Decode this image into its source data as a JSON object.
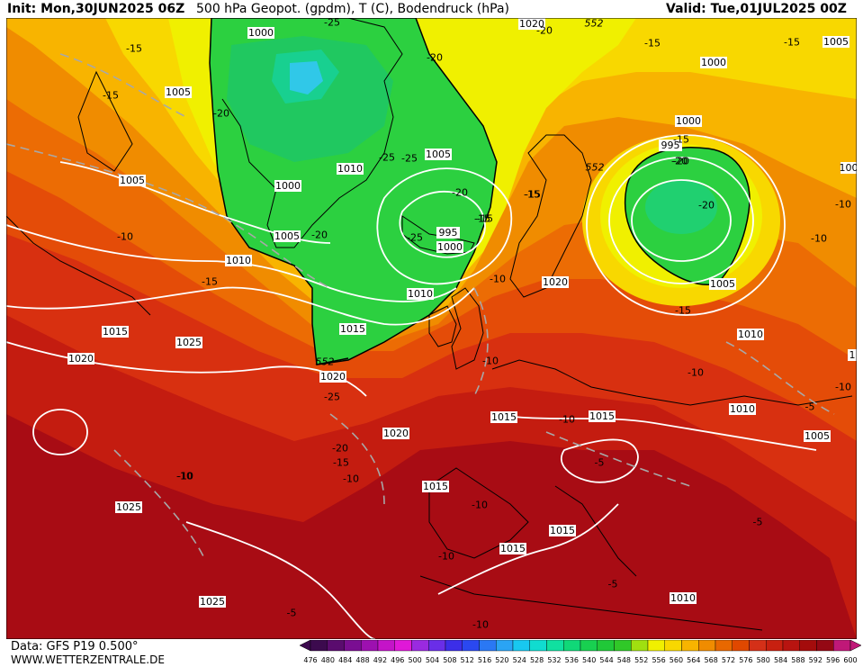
{
  "header": {
    "init": "Init: Mon,30JUN2025 06Z",
    "title": "500 hPa Geopot. (gpdm), T (C), Bodendruck (hPa)",
    "valid": "Valid: Tue,01JUL2025 00Z"
  },
  "footer": {
    "data_source": "Data: GFS P19 0.500°",
    "website": "WWW.WETTERZENTRALE.DE"
  },
  "colorbar": {
    "labels": [
      "476",
      "480",
      "484",
      "488",
      "492",
      "496",
      "500",
      "504",
      "508",
      "512",
      "516",
      "520",
      "524",
      "528",
      "532",
      "536",
      "540",
      "544",
      "548",
      "552",
      "556",
      "560",
      "564",
      "568",
      "572",
      "576",
      "580",
      "584",
      "588",
      "592",
      "596",
      "600"
    ],
    "colors": [
      "#3c0a4e",
      "#5a0c6e",
      "#7a0e92",
      "#9d10b0",
      "#c414c8",
      "#e018d8",
      "#9a2ae0",
      "#6a2ee8",
      "#3c2ee8",
      "#2a48f0",
      "#2a78f4",
      "#2aa4f4",
      "#18c8f0",
      "#10dcd0",
      "#10e0a0",
      "#10d878",
      "#18d050",
      "#20c838",
      "#30c828",
      "#a0e010",
      "#f0f000",
      "#f8d800",
      "#f8b400",
      "#f08c00",
      "#e86800",
      "#e04800",
      "#d43018",
      "#c82010",
      "#b81410",
      "#a40c0c",
      "#940814",
      "#c01878"
    ]
  },
  "map": {
    "pressure_labels": [
      {
        "text": "1000"
      },
      {
        "text": "1005"
      },
      {
        "text": "1010"
      },
      {
        "text": "1000"
      },
      {
        "text": "1005"
      },
      {
        "text": "995"
      },
      {
        "text": "1000"
      },
      {
        "text": "1005"
      },
      {
        "text": "1010"
      },
      {
        "text": "1015"
      },
      {
        "text": "1020"
      },
      {
        "text": "1020"
      },
      {
        "text": "1000"
      },
      {
        "text": "995"
      },
      {
        "text": "1005"
      },
      {
        "text": "1000"
      },
      {
        "text": "1005"
      },
      {
        "text": "1005"
      },
      {
        "text": "1010"
      },
      {
        "text": "1015"
      },
      {
        "text": "1020"
      },
      {
        "text": "1025"
      },
      {
        "text": "1025"
      },
      {
        "text": "1025"
      },
      {
        "text": "1020"
      },
      {
        "text": "1015"
      },
      {
        "text": "1015"
      },
      {
        "text": "1015"
      },
      {
        "text": "1015"
      },
      {
        "text": "1015"
      },
      {
        "text": "1020"
      },
      {
        "text": "1010"
      },
      {
        "text": "1010"
      },
      {
        "text": "1005"
      },
      {
        "text": "1010"
      },
      {
        "text": "100"
      },
      {
        "text": "1"
      },
      {
        "text": "1020"
      }
    ],
    "temp_labels": [
      {
        "text": "-15"
      },
      {
        "text": "-15"
      },
      {
        "text": "-20"
      },
      {
        "text": "-25"
      },
      {
        "text": "-20"
      },
      {
        "text": "-20"
      },
      {
        "text": "-25"
      },
      {
        "text": "-25"
      },
      {
        "text": "-20"
      },
      {
        "text": "-15"
      },
      {
        "text": "-15"
      },
      {
        "text": "-15"
      },
      {
        "text": "-10"
      },
      {
        "text": "-15"
      },
      {
        "text": "-10"
      },
      {
        "text": "-25"
      },
      {
        "text": "-20"
      },
      {
        "text": "-15"
      },
      {
        "text": "-10"
      },
      {
        "text": "-10"
      },
      {
        "text": "-10"
      },
      {
        "text": "-10"
      },
      {
        "text": "-5"
      },
      {
        "text": "-10"
      },
      {
        "text": "-10"
      },
      {
        "text": "-10"
      },
      {
        "text": "-5"
      },
      {
        "text": "-5"
      },
      {
        "text": "-5"
      },
      {
        "text": "-15"
      },
      {
        "text": "-20"
      },
      {
        "text": "-15"
      },
      {
        "text": "-20"
      },
      {
        "text": "-20"
      },
      {
        "text": "-25"
      },
      {
        "text": "-15"
      },
      {
        "text": "-15"
      },
      {
        "text": "-10"
      },
      {
        "text": "-10"
      },
      {
        "text": "-10"
      },
      {
        "text": "-10"
      },
      {
        "text": "-5"
      },
      {
        "text": "-20"
      },
      {
        "text": "-15"
      },
      {
        "text": "-10"
      }
    ],
    "geopot_labels": [
      {
        "text": "552"
      },
      {
        "text": "552"
      },
      {
        "text": "552"
      }
    ]
  }
}
